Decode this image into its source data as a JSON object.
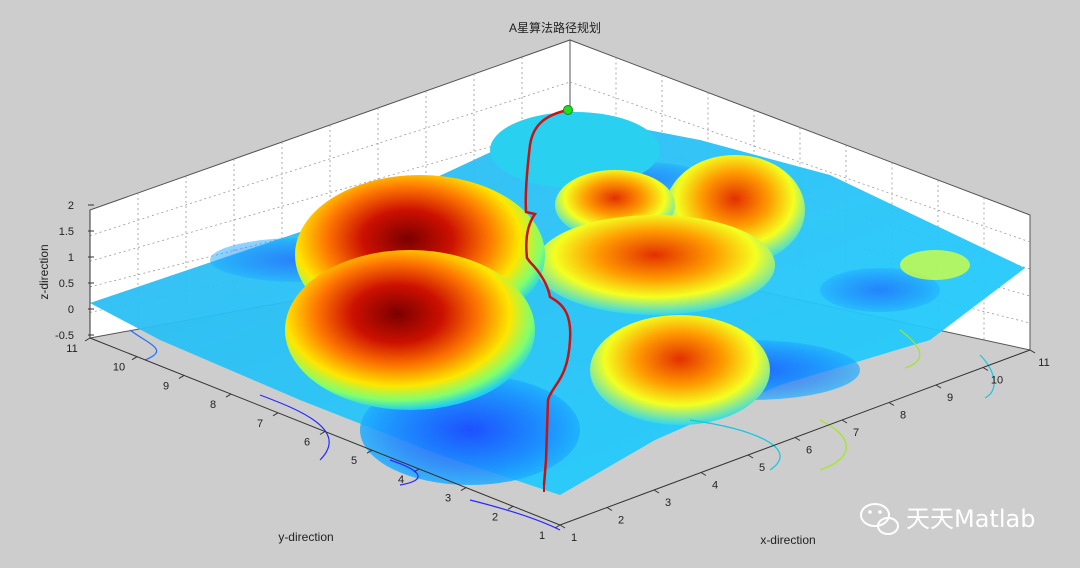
{
  "chart_data": {
    "type": "surface",
    "title": "A星算法路径规划",
    "xlabel": "x-direction",
    "ylabel": "y-direction",
    "zlabel": "z-direction",
    "xlim": [
      1,
      11
    ],
    "ylim": [
      1,
      11
    ],
    "zlim": [
      -0.5,
      2
    ],
    "x_ticks": [
      "1",
      "2",
      "3",
      "4",
      "5",
      "6",
      "7",
      "8",
      "9",
      "10",
      "11"
    ],
    "y_ticks": [
      "1",
      "2",
      "3",
      "4",
      "5",
      "6",
      "7",
      "8",
      "9",
      "10",
      "11"
    ],
    "z_ticks": [
      "-0.5",
      "0",
      "0.5",
      "1",
      "1.5",
      "2"
    ],
    "grid": true,
    "colormap": "jet",
    "peaks": [
      {
        "x": 3.0,
        "y": 8.0,
        "z": 2.0
      },
      {
        "x": 3.5,
        "y": 6.5,
        "z": 2.0
      },
      {
        "x": 6.5,
        "y": 6.5,
        "z": 1.4
      },
      {
        "x": 7.5,
        "y": 8.5,
        "z": 1.3
      },
      {
        "x": 9.0,
        "y": 3.8,
        "z": 1.2
      },
      {
        "x": 10.0,
        "y": 7.5,
        "z": 1.5
      },
      {
        "x": 9.0,
        "y": 9.5,
        "z": 1.0
      }
    ],
    "path": {
      "color": "#cc1111",
      "points": [
        {
          "x": 1.0,
          "y": 1.0,
          "z": 0.2
        },
        {
          "x": 3.5,
          "y": 3.5,
          "z": 0.4
        },
        {
          "x": 5.0,
          "y": 5.0,
          "z": 0.6
        },
        {
          "x": 6.0,
          "y": 6.0,
          "z": 0.9
        },
        {
          "x": 7.0,
          "y": 7.0,
          "z": 1.1
        },
        {
          "x": 8.5,
          "y": 8.5,
          "z": 1.3
        },
        {
          "x": 10.0,
          "y": 10.0,
          "z": 1.6
        },
        {
          "x": 11.0,
          "y": 11.0,
          "z": 1.8
        }
      ],
      "start_marker_color": "#22dd22"
    }
  },
  "watermark": {
    "text": "天天Matlab",
    "icon": "wechat-icon"
  }
}
